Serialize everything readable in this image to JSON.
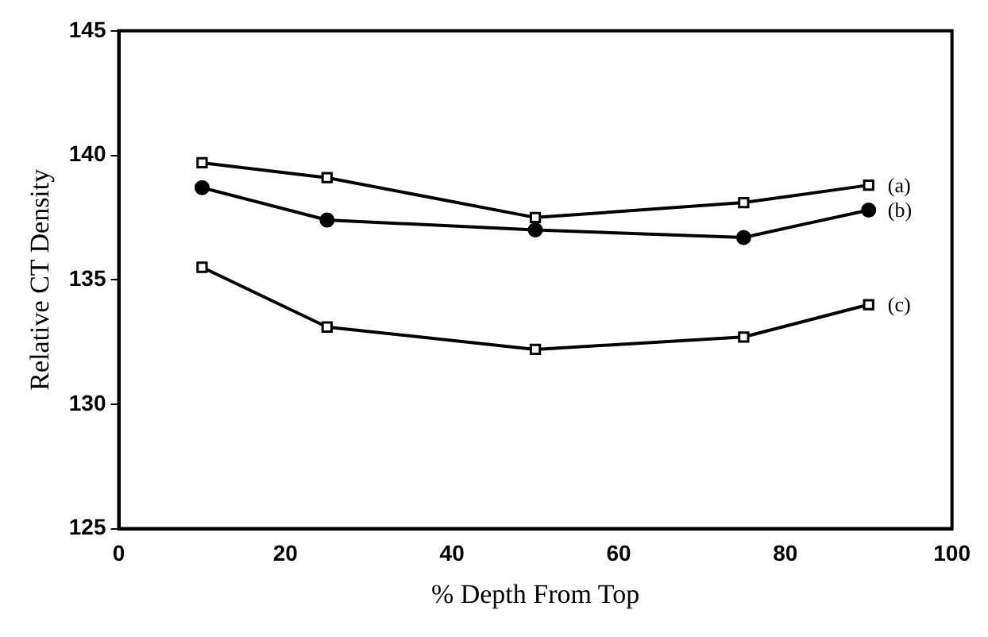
{
  "chart_data": {
    "type": "line",
    "xlabel": "% Depth From Top",
    "ylabel": "Relative CT Density",
    "x": [
      10,
      25,
      50,
      75,
      90
    ],
    "series": [
      {
        "name": "(a)",
        "color": "#000000",
        "marker": "square",
        "values": [
          139.7,
          139.1,
          137.5,
          138.1,
          138.8
        ]
      },
      {
        "name": "(b)",
        "color": "#000000",
        "marker": "circle",
        "values": [
          138.7,
          137.4,
          137.0,
          136.7,
          137.8
        ]
      },
      {
        "name": "(c)",
        "color": "#000000",
        "marker": "square",
        "values": [
          135.5,
          133.1,
          132.2,
          132.7,
          134.0
        ]
      }
    ],
    "xlim": [
      0,
      100
    ],
    "xticks": [
      0,
      20,
      40,
      60,
      80,
      100
    ],
    "ylim": [
      125,
      145
    ],
    "yticks": [
      125,
      130,
      135,
      140,
      145
    ],
    "grid": false,
    "legend": false,
    "line_style": "solid"
  }
}
